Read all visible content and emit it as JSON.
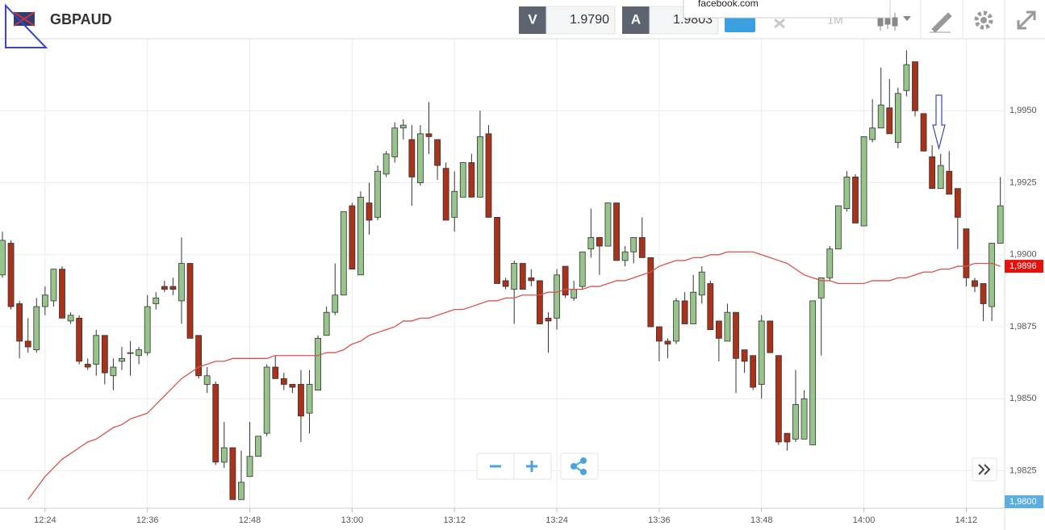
{
  "header": {
    "symbol": "GBPAUD",
    "bid_label": "V",
    "bid": "1.9790",
    "ask_label": "A",
    "ask": "1.9803",
    "timeframe": "1M"
  },
  "popup": "facebook.com",
  "chart_data": {
    "type": "candlestick",
    "categories": [
      null,
      null,
      null,
      null,
      null,
      "12:24",
      null,
      null,
      null,
      null,
      null,
      null,
      null,
      null,
      null,
      null,
      null,
      "12:36",
      null,
      null,
      null,
      null,
      null,
      null,
      null,
      null,
      null,
      null,
      null,
      "12:48",
      null,
      null,
      null,
      null,
      null,
      null,
      null,
      null,
      null,
      null,
      null,
      "13:00",
      null,
      null,
      null,
      null,
      null,
      null,
      null,
      null,
      null,
      null,
      null,
      "13:12",
      null,
      null,
      null,
      null,
      null,
      null,
      null,
      null,
      null,
      null,
      null,
      "13:24",
      null,
      null,
      null,
      null,
      null,
      null,
      null,
      null,
      null,
      null,
      null,
      "13:36",
      null,
      null,
      null,
      null,
      null,
      null,
      null,
      null,
      null,
      null,
      null,
      "13:48",
      null,
      null,
      null,
      null,
      null,
      null,
      null,
      null,
      null,
      null,
      null,
      "14:00",
      null,
      null,
      null,
      null,
      null,
      null,
      null,
      null,
      null,
      null,
      null,
      "14:12",
      null,
      null,
      null,
      null
    ],
    "open": [
      1.9893,
      1.9904,
      1.9883,
      1.987,
      1.9867,
      1.9882,
      1.9884,
      1.9895,
      1.9877,
      1.9878,
      1.9862,
      1.9862,
      1.9872,
      1.9858,
      1.9863,
      1.9866,
      1.9865,
      1.9866,
      1.9883,
      1.9889,
      1.9889,
      1.9884,
      1.9897,
      1.9872,
      1.9855,
      1.9855,
      1.9828,
      1.9833,
      1.9815,
      1.9823,
      1.983,
      1.9838,
      1.9861,
      1.9857,
      1.9855,
      1.9855,
      1.9845,
      1.9853,
      1.9872,
      1.988,
      1.9886,
      1.9917,
      1.9893,
      1.9918,
      1.9913,
      1.9928,
      1.9934,
      1.9944,
      1.994,
      1.9925,
      1.9942,
      1.994,
      1.993,
      1.9913,
      1.992,
      1.9932,
      1.992,
      1.9942,
      1.9913,
      1.9891,
      1.9888,
      1.9897,
      1.9892,
      1.9891,
      1.9878,
      1.9878,
      1.9896,
      1.9885,
      1.9889,
      1.9902,
      1.9906,
      1.9903,
      1.9918,
      1.9898,
      1.9901,
      1.9906,
      1.9899,
      1.9875,
      1.987,
      1.987,
      1.9884,
      1.9876,
      1.9886,
      1.989,
      1.9877,
      1.987,
      1.988,
      1.9867,
      1.9865,
      1.9855,
      1.9877,
      1.9865,
      1.9838,
      1.9836,
      1.9836,
      1.9834,
      1.9885,
      1.9892,
      1.9902,
      1.9916,
      1.9927,
      1.991,
      1.994,
      1.9944,
      1.9951,
      1.9939,
      1.9957,
      1.9967,
      1.9949,
      1.9934,
      1.9923,
      1.9929,
      1.9923,
      1.9909,
      1.9891,
      1.989,
      1.9882,
      1.9904
    ],
    "high": [
      1.9908,
      1.9905,
      1.9884,
      1.9878,
      1.9885,
      1.9889,
      1.9895,
      1.9896,
      1.988,
      1.9879,
      1.9864,
      1.9874,
      1.9872,
      1.9864,
      1.9868,
      1.987,
      1.9868,
      1.9886,
      1.9887,
      1.9891,
      1.9892,
      1.9906,
      1.9897,
      1.9872,
      1.9861,
      1.9856,
      1.9842,
      1.9833,
      1.9832,
      1.9842,
      1.9837,
      1.9862,
      1.9865,
      1.9859,
      1.9855,
      1.986,
      1.986,
      1.9872,
      1.9882,
      1.9897,
      1.9915,
      1.9918,
      1.9922,
      1.9925,
      1.9931,
      1.9936,
      1.9946,
      1.9947,
      1.9945,
      1.9945,
      1.9953,
      1.994,
      1.9932,
      1.9929,
      1.9932,
      1.9935,
      1.995,
      1.9945,
      1.9913,
      1.9892,
      1.9898,
      1.9897,
      1.9895,
      1.9891,
      1.988,
      1.9895,
      1.9896,
      1.9891,
      1.9901,
      1.9916,
      1.9906,
      1.9918,
      1.9918,
      1.9903,
      1.9906,
      1.9913,
      1.9899,
      1.9875,
      1.9871,
      1.9885,
      1.9887,
      1.9893,
      1.9896,
      1.9891,
      1.9877,
      1.9883,
      1.988,
      1.9867,
      1.9865,
      1.9879,
      1.9877,
      1.9865,
      1.9838,
      1.986,
      1.9853,
      1.9884,
      1.9892,
      1.9903,
      1.9917,
      1.9929,
      1.9928,
      1.9941,
      1.9954,
      1.9965,
      1.9961,
      1.9958,
      1.9971,
      1.9967,
      1.9949,
      1.9938,
      1.9935,
      1.9936,
      1.9923,
      1.9909,
      1.9892,
      1.989,
      1.9904,
      1.9927
    ],
    "low": [
      1.9892,
      1.9881,
      1.9864,
      1.9866,
      1.9866,
      1.9879,
      1.9882,
      1.9878,
      1.9876,
      1.9862,
      1.986,
      1.9858,
      1.9855,
      1.9853,
      1.986,
      1.9858,
      1.9862,
      1.9865,
      1.9881,
      1.9887,
      1.9886,
      1.9876,
      1.9871,
      1.9857,
      1.9852,
      1.9827,
      1.9826,
      1.9815,
      1.9815,
      1.9823,
      1.983,
      1.9837,
      1.9857,
      1.9853,
      1.9852,
      1.9835,
      1.9838,
      1.9853,
      1.9872,
      1.9879,
      1.9886,
      1.9895,
      1.9893,
      1.9907,
      1.9912,
      1.9927,
      1.9932,
      1.994,
      1.9917,
      1.9924,
      1.9935,
      1.9926,
      1.9912,
      1.9908,
      1.992,
      1.992,
      1.992,
      1.9913,
      1.989,
      1.9888,
      1.9876,
      1.9888,
      1.9889,
      1.9876,
      1.9866,
      1.9874,
      1.9885,
      1.9884,
      1.9888,
      1.9899,
      1.9893,
      1.9903,
      1.9898,
      1.9896,
      1.9897,
      1.9899,
      1.9875,
      1.9863,
      1.9864,
      1.9869,
      1.9876,
      1.9876,
      1.9883,
      1.9874,
      1.9863,
      1.987,
      1.9852,
      1.9859,
      1.9853,
      1.985,
      1.9866,
      1.9834,
      1.9832,
      1.9835,
      1.9836,
      1.9834,
      1.9865,
      1.9891,
      1.9902,
      1.9915,
      1.9911,
      1.991,
      1.9939,
      1.9944,
      1.9942,
      1.9937,
      1.9955,
      1.9948,
      1.9936,
      1.9923,
      1.9923,
      1.9921,
      1.9902,
      1.9889,
      1.9887,
      1.9877,
      1.9877,
      1.9904
    ],
    "close": [
      1.9905,
      1.9882,
      1.987,
      1.9868,
      1.9882,
      1.9886,
      1.9895,
      1.9878,
      1.9879,
      1.9863,
      1.9861,
      1.9872,
      1.9859,
      1.9861,
      1.9864,
      1.9866,
      1.9867,
      1.9882,
      1.9885,
      1.9888,
      1.9888,
      1.9897,
      1.9871,
      1.9858,
      1.9858,
      1.9828,
      1.9833,
      1.9815,
      1.9821,
      1.983,
      1.9837,
      1.9861,
      1.9857,
      1.9855,
      1.9854,
      1.9844,
      1.9855,
      1.9871,
      1.988,
      1.9886,
      1.9915,
      1.9895,
      1.992,
      1.9912,
      1.9929,
      1.9935,
      1.9944,
      1.9945,
      1.9927,
      1.9942,
      1.9941,
      1.9931,
      1.9912,
      1.9922,
      1.9932,
      1.992,
      1.9941,
      1.9913,
      1.989,
      1.9889,
      1.9897,
      1.9888,
      1.9891,
      1.9876,
      1.9877,
      1.9893,
      1.9886,
      1.9888,
      1.9901,
      1.9906,
      1.9903,
      1.9918,
      1.9898,
      1.9901,
      1.9906,
      1.9899,
      1.9875,
      1.987,
      1.9869,
      1.9884,
      1.9876,
      1.9887,
      1.9894,
      1.9874,
      1.9871,
      1.988,
      1.9864,
      1.9863,
      1.9854,
      1.9877,
      1.9866,
      1.9835,
      1.9835,
      1.9848,
      1.985,
      1.9884,
      1.9892,
      1.9902,
      1.9917,
      1.9927,
      1.9911,
      1.9941,
      1.9944,
      1.9952,
      1.9942,
      1.9956,
      1.9966,
      1.995,
      1.9936,
      1.9923,
      1.9931,
      1.9921,
      1.9913,
      1.9892,
      1.9889,
      1.9883,
      1.9904,
      1.9917
    ],
    "up_color": "#97c48a",
    "down_color": "#a8321a",
    "ma": {
      "color": "#d9534f",
      "values": [
        null,
        null,
        null,
        1.9815,
        1.9819,
        1.9823,
        1.9826,
        1.9829,
        1.9831,
        1.9833,
        1.9835,
        1.9836,
        1.9838,
        1.984,
        1.9841,
        1.9843,
        1.9844,
        1.9845,
        1.9848,
        1.9851,
        1.9854,
        1.9857,
        1.9859,
        1.9861,
        1.9862,
        1.9863,
        1.9863,
        1.9864,
        1.9864,
        1.9864,
        1.9864,
        1.9864,
        1.9865,
        1.9865,
        1.9865,
        1.9865,
        1.9865,
        1.9865,
        1.9866,
        1.9866,
        1.9867,
        1.9869,
        1.987,
        1.9872,
        1.9873,
        1.9874,
        1.9875,
        1.9877,
        1.9877,
        1.9878,
        1.9878,
        1.9879,
        1.988,
        1.9881,
        1.9881,
        1.9882,
        1.9883,
        1.9884,
        1.9884,
        1.9885,
        1.9885,
        1.9886,
        1.9886,
        1.9886,
        1.9887,
        1.9887,
        1.9888,
        1.9888,
        1.9888,
        1.9889,
        1.9889,
        1.989,
        1.9891,
        1.9891,
        1.9892,
        1.9893,
        1.9894,
        1.9896,
        1.9897,
        1.9898,
        1.9898,
        1.9899,
        1.9899,
        1.99,
        1.99,
        1.9901,
        1.9901,
        1.9901,
        1.9901,
        1.99,
        1.9899,
        1.9898,
        1.9897,
        1.9895,
        1.9893,
        1.9892,
        1.9891,
        1.9891,
        1.989,
        1.989,
        1.989,
        1.989,
        1.9891,
        1.9891,
        1.9891,
        1.9892,
        1.9892,
        1.9893,
        1.9894,
        1.9894,
        1.9895,
        1.9895,
        1.9896,
        1.9896,
        1.9897,
        1.9897,
        1.9897,
        1.9896
      ]
    },
    "last_label": {
      "value": 1.9896,
      "label": "1,9896"
    },
    "bottom_tag": "1,9800",
    "ylim": [
      1.9812,
      1.9975
    ],
    "yticks": [
      {
        "value": 1.9825,
        "label": "1,9825"
      },
      {
        "value": 1.985,
        "label": "1,9850"
      },
      {
        "value": 1.9875,
        "label": "1,9875"
      },
      {
        "value": 1.99,
        "label": "1,9900"
      },
      {
        "value": 1.9925,
        "label": "1,9925"
      },
      {
        "value": 1.995,
        "label": "1,9950"
      }
    ],
    "grid": true
  }
}
